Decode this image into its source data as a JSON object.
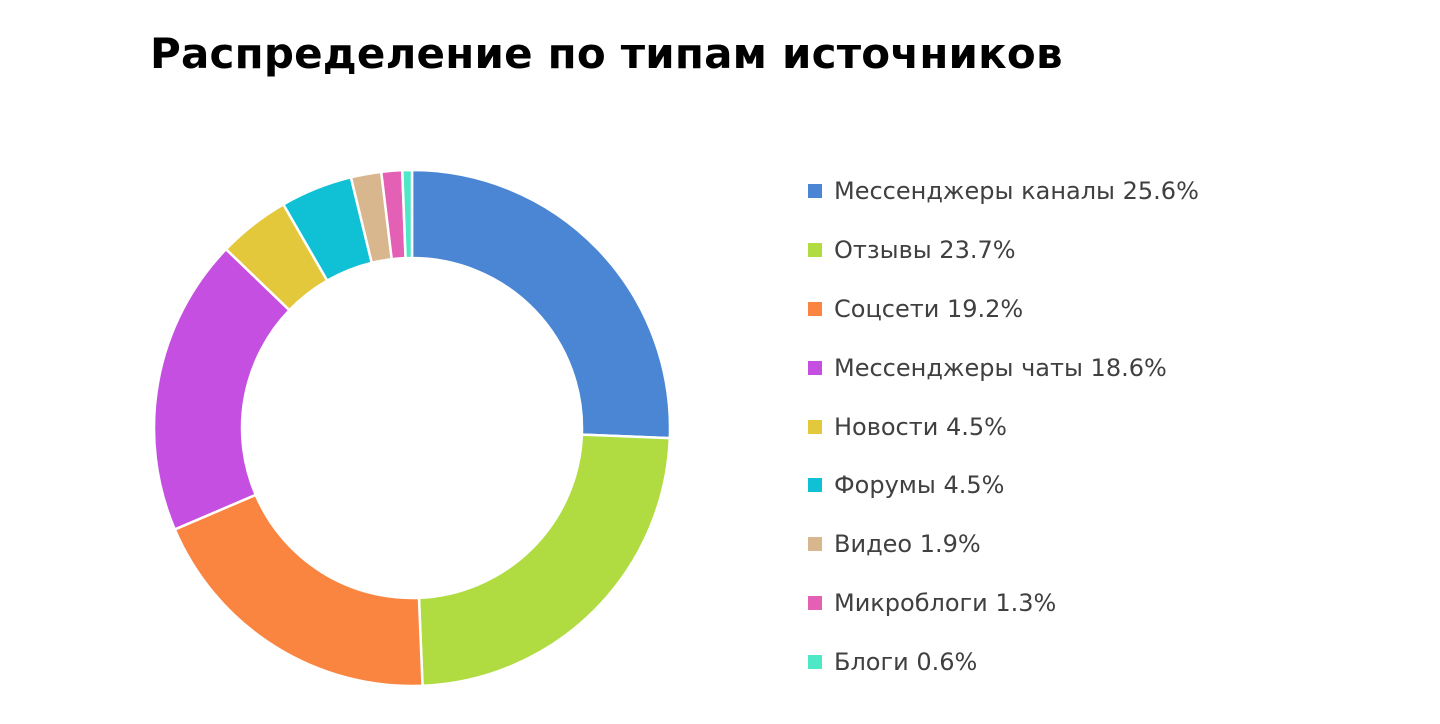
{
  "chart_data": {
    "type": "pie",
    "title": "Распределение по типам источников",
    "legend_position": "right",
    "categories": [
      "Мессенджеры каналы",
      "Отзывы",
      "Соцсети",
      "Мессенджеры чаты",
      "Новости",
      "Форумы",
      "Видео",
      "Микроблоги",
      "Блоги"
    ],
    "values": [
      25.6,
      23.7,
      19.2,
      18.6,
      4.5,
      4.5,
      1.9,
      1.3,
      0.6
    ],
    "colors": [
      "#4a86d4",
      "#b0dc42",
      "#fa8540",
      "#c44fe0",
      "#e3c83c",
      "#10c1d6",
      "#d9b78e",
      "#e460b4",
      "#4fe8c6"
    ],
    "legend_labels": [
      "Мессенджеры каналы 25.6%",
      "Отзывы 23.7%",
      "Соцсети 19.2%",
      "Мессенджеры чаты 18.6%",
      "Новости 4.5%",
      "Форумы 4.5%",
      "Видео 1.9%",
      "Микроблоги 1.3%",
      "Блоги 0.6%"
    ]
  }
}
